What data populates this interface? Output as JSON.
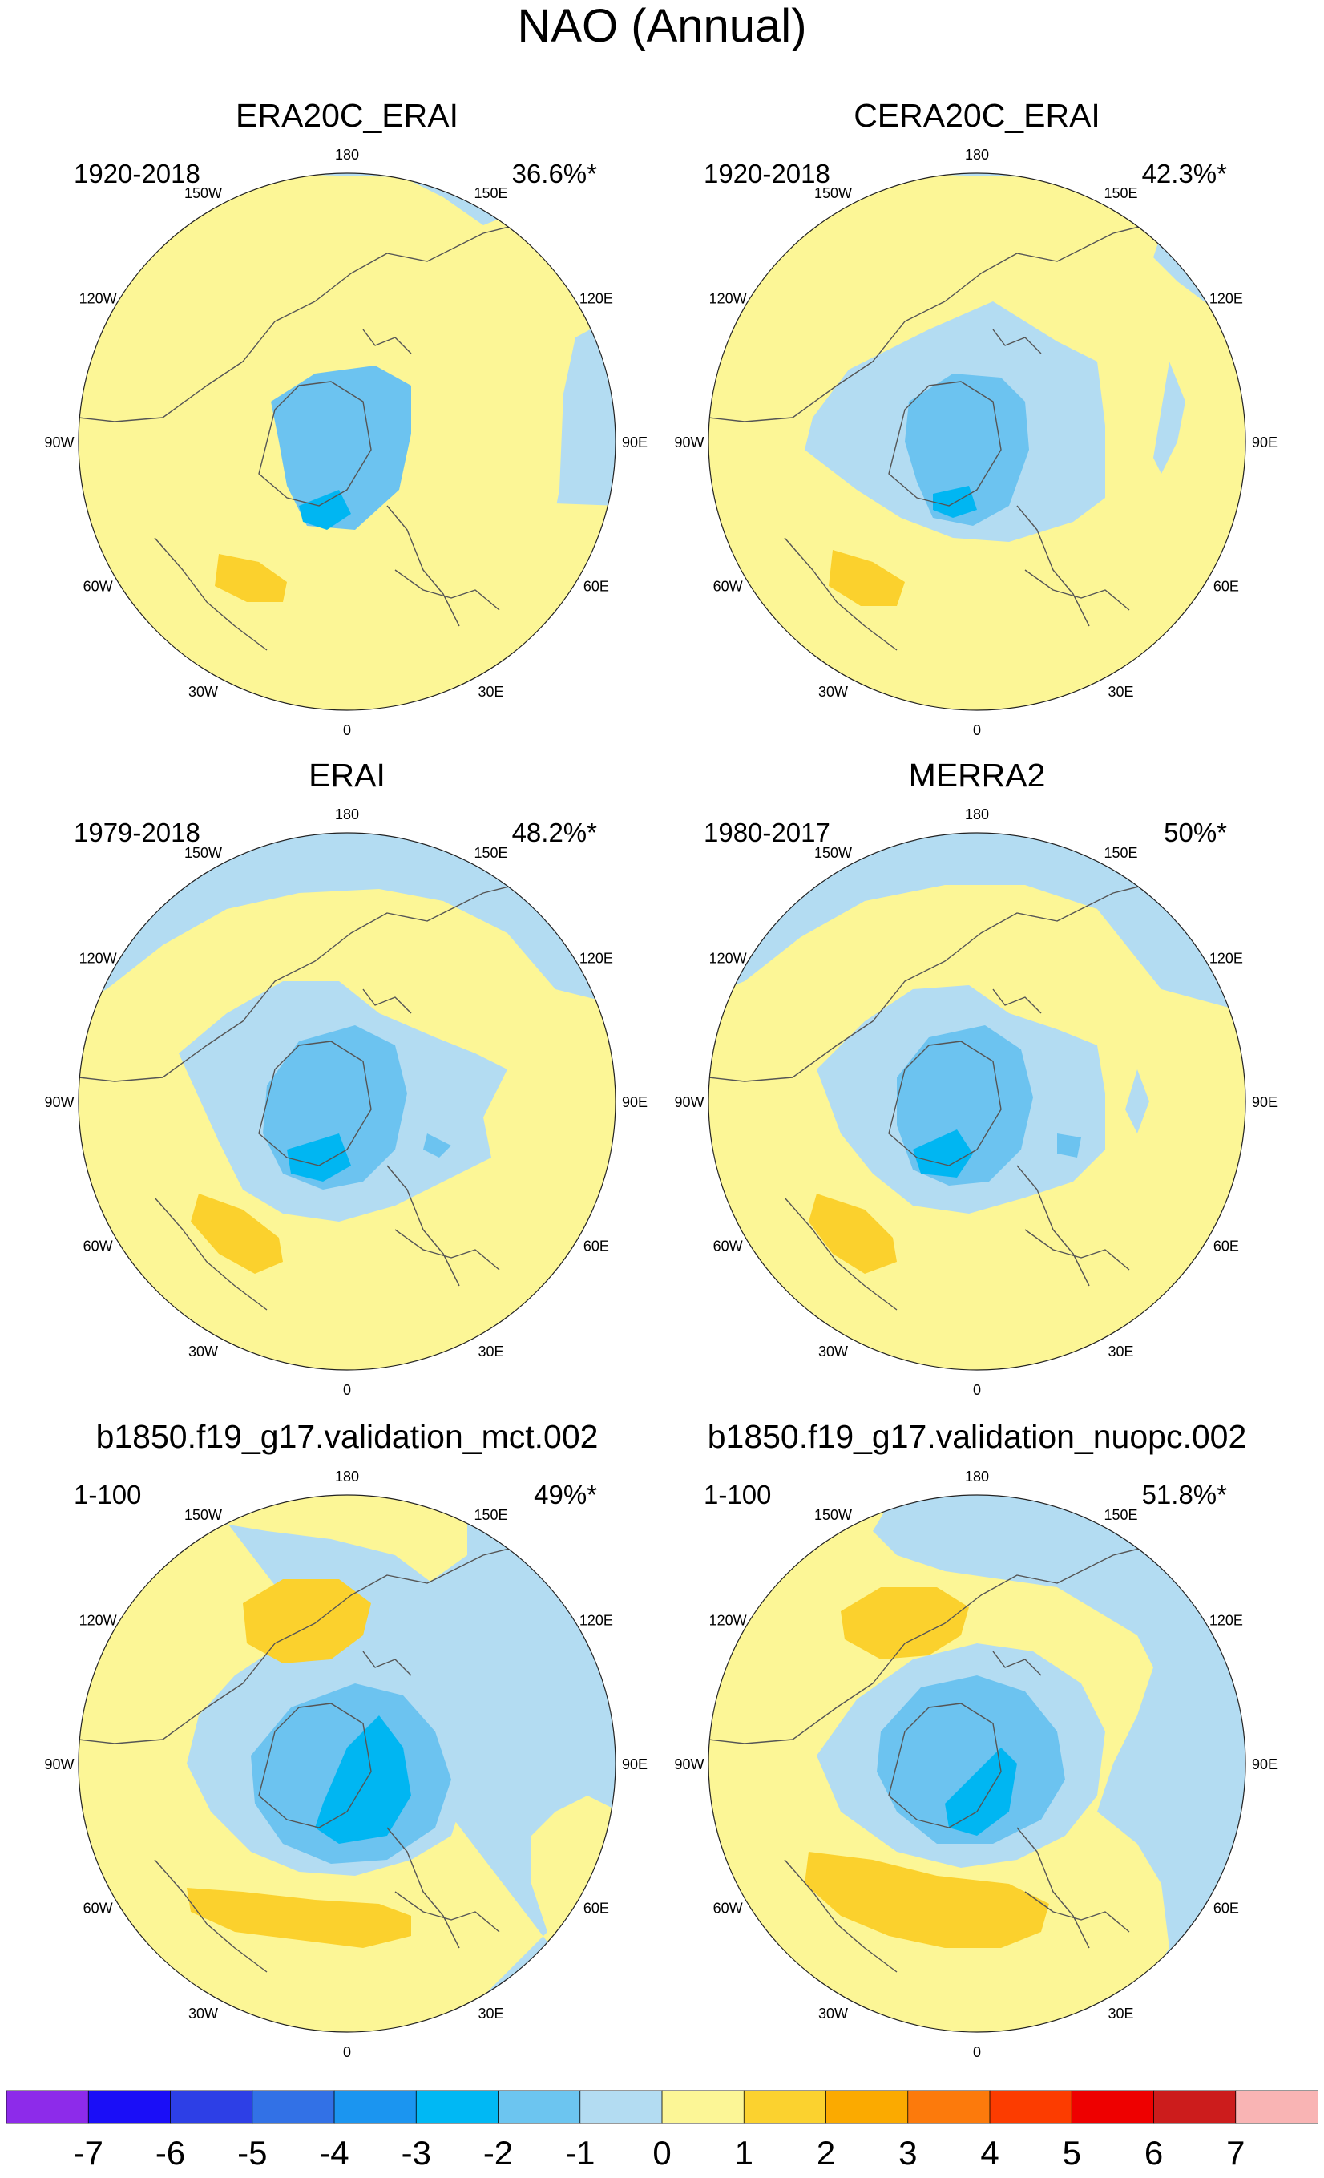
{
  "figure_title": "NAO (Annual)",
  "colors": {
    "ocean": "#b3dcf2",
    "yellow": "#fcf696",
    "orange": "#fbd12d",
    "neg1": "#b3dcf2",
    "neg2": "#6cc3f0",
    "neg3": "#00b6f2",
    "coast": "#555555"
  },
  "lon_labels": [
    "180",
    "150E",
    "120E",
    "90E",
    "60E",
    "30E",
    "0",
    "30W",
    "60W",
    "90W",
    "120W",
    "150W"
  ],
  "colorbar": {
    "colors": [
      "#8d2bea",
      "#1a0ef7",
      "#2d3fe6",
      "#3271e6",
      "#1b95f0",
      "#00b8f4",
      "#6cc5f0",
      "#b3dcf2",
      "#fcf696",
      "#fbd22f",
      "#fbaa00",
      "#fc7a0c",
      "#fc3c00",
      "#ee0000",
      "#cc1c1c",
      "#f9b4b4"
    ],
    "labels": [
      "-7",
      "-6",
      "-5",
      "-4",
      "-3",
      "-2",
      "-1",
      "0",
      "1",
      "2",
      "3",
      "4",
      "5",
      "6",
      "7"
    ]
  },
  "chart_data": [
    {
      "type": "contour_map",
      "title": "ERA20C_ERAI",
      "period": "1920-2018",
      "variance": "36.6%*",
      "levels": [
        {
          "value": -1,
          "color": "#b3dcf2"
        },
        {
          "value": -2,
          "color": "#6cc3f0"
        },
        {
          "value": -3,
          "color": "#00b6f2"
        },
        {
          "value": 2,
          "color": "#fbd12d"
        }
      ]
    },
    {
      "type": "contour_map",
      "title": "CERA20C_ERAI",
      "period": "1920-2018",
      "variance": "42.3%*",
      "levels": [
        {
          "value": -1,
          "color": "#b3dcf2"
        },
        {
          "value": -2,
          "color": "#6cc3f0"
        },
        {
          "value": -3,
          "color": "#00b6f2"
        },
        {
          "value": 2,
          "color": "#fbd12d"
        }
      ]
    },
    {
      "type": "contour_map",
      "title": "ERAI",
      "period": "1979-2018",
      "variance": "48.2%*",
      "levels": [
        {
          "value": -1,
          "color": "#b3dcf2"
        },
        {
          "value": -2,
          "color": "#6cc3f0"
        },
        {
          "value": -3,
          "color": "#00b6f2"
        },
        {
          "value": 2,
          "color": "#fbd12d"
        }
      ]
    },
    {
      "type": "contour_map",
      "title": "MERRA2",
      "period": "1980-2017",
      "variance": "50%*",
      "levels": [
        {
          "value": -1,
          "color": "#b3dcf2"
        },
        {
          "value": -2,
          "color": "#6cc3f0"
        },
        {
          "value": -3,
          "color": "#00b6f2"
        },
        {
          "value": 2,
          "color": "#fbd12d"
        }
      ]
    },
    {
      "type": "contour_map",
      "title": "b1850.f19_g17.validation_mct.002",
      "period": "1-100",
      "variance": "49%*",
      "levels": [
        {
          "value": -1,
          "color": "#b3dcf2"
        },
        {
          "value": -2,
          "color": "#6cc3f0"
        },
        {
          "value": -3,
          "color": "#00b6f2"
        },
        {
          "value": 2,
          "color": "#fbd12d"
        }
      ]
    },
    {
      "type": "contour_map",
      "title": "b1850.f19_g17.validation_nuopc.002",
      "period": "1-100",
      "variance": "51.8%*",
      "levels": [
        {
          "value": -1,
          "color": "#b3dcf2"
        },
        {
          "value": -2,
          "color": "#6cc3f0"
        },
        {
          "value": -3,
          "color": "#00b6f2"
        },
        {
          "value": 2,
          "color": "#fbd12d"
        }
      ]
    }
  ]
}
